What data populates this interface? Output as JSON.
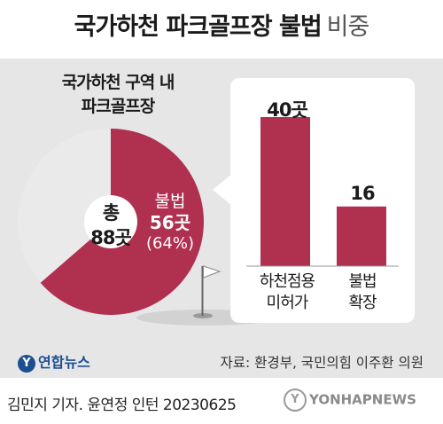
{
  "header": {
    "title": "국가하천 파크골프장 불법",
    "subtitle": "비중"
  },
  "colors": {
    "accent": "#b0304f",
    "pie_rest": "#eaeaea",
    "panel": "#e6e6e6"
  },
  "chart_data": [
    {
      "type": "pie",
      "title_lines": [
        "국가하천 구역 내",
        "파크골프장"
      ],
      "total_lines": [
        "총",
        "88곳"
      ],
      "total": 88,
      "slices": [
        {
          "name": "불법",
          "value": 56,
          "value_label": "56곳",
          "percent_label": "(64%)",
          "color": "#b0304f"
        },
        {
          "name": "",
          "value": 32,
          "color": "#eaeaea"
        }
      ]
    },
    {
      "type": "bar",
      "categories": [
        {
          "lines": [
            "하천점용",
            "미허가"
          ]
        },
        {
          "lines": [
            "불법",
            "확장"
          ]
        }
      ],
      "values": [
        40,
        16
      ],
      "value_labels": [
        "40곳",
        "16"
      ],
      "ylim": [
        0,
        40
      ]
    }
  ],
  "footer": {
    "logo_text": "연합뉴스",
    "source": "자료: 환경부, 국민의힘 이주환 의원",
    "credit": "김민지 기자. 윤연정 인턴  20230625",
    "watermark": "YONHAPNEWS"
  }
}
